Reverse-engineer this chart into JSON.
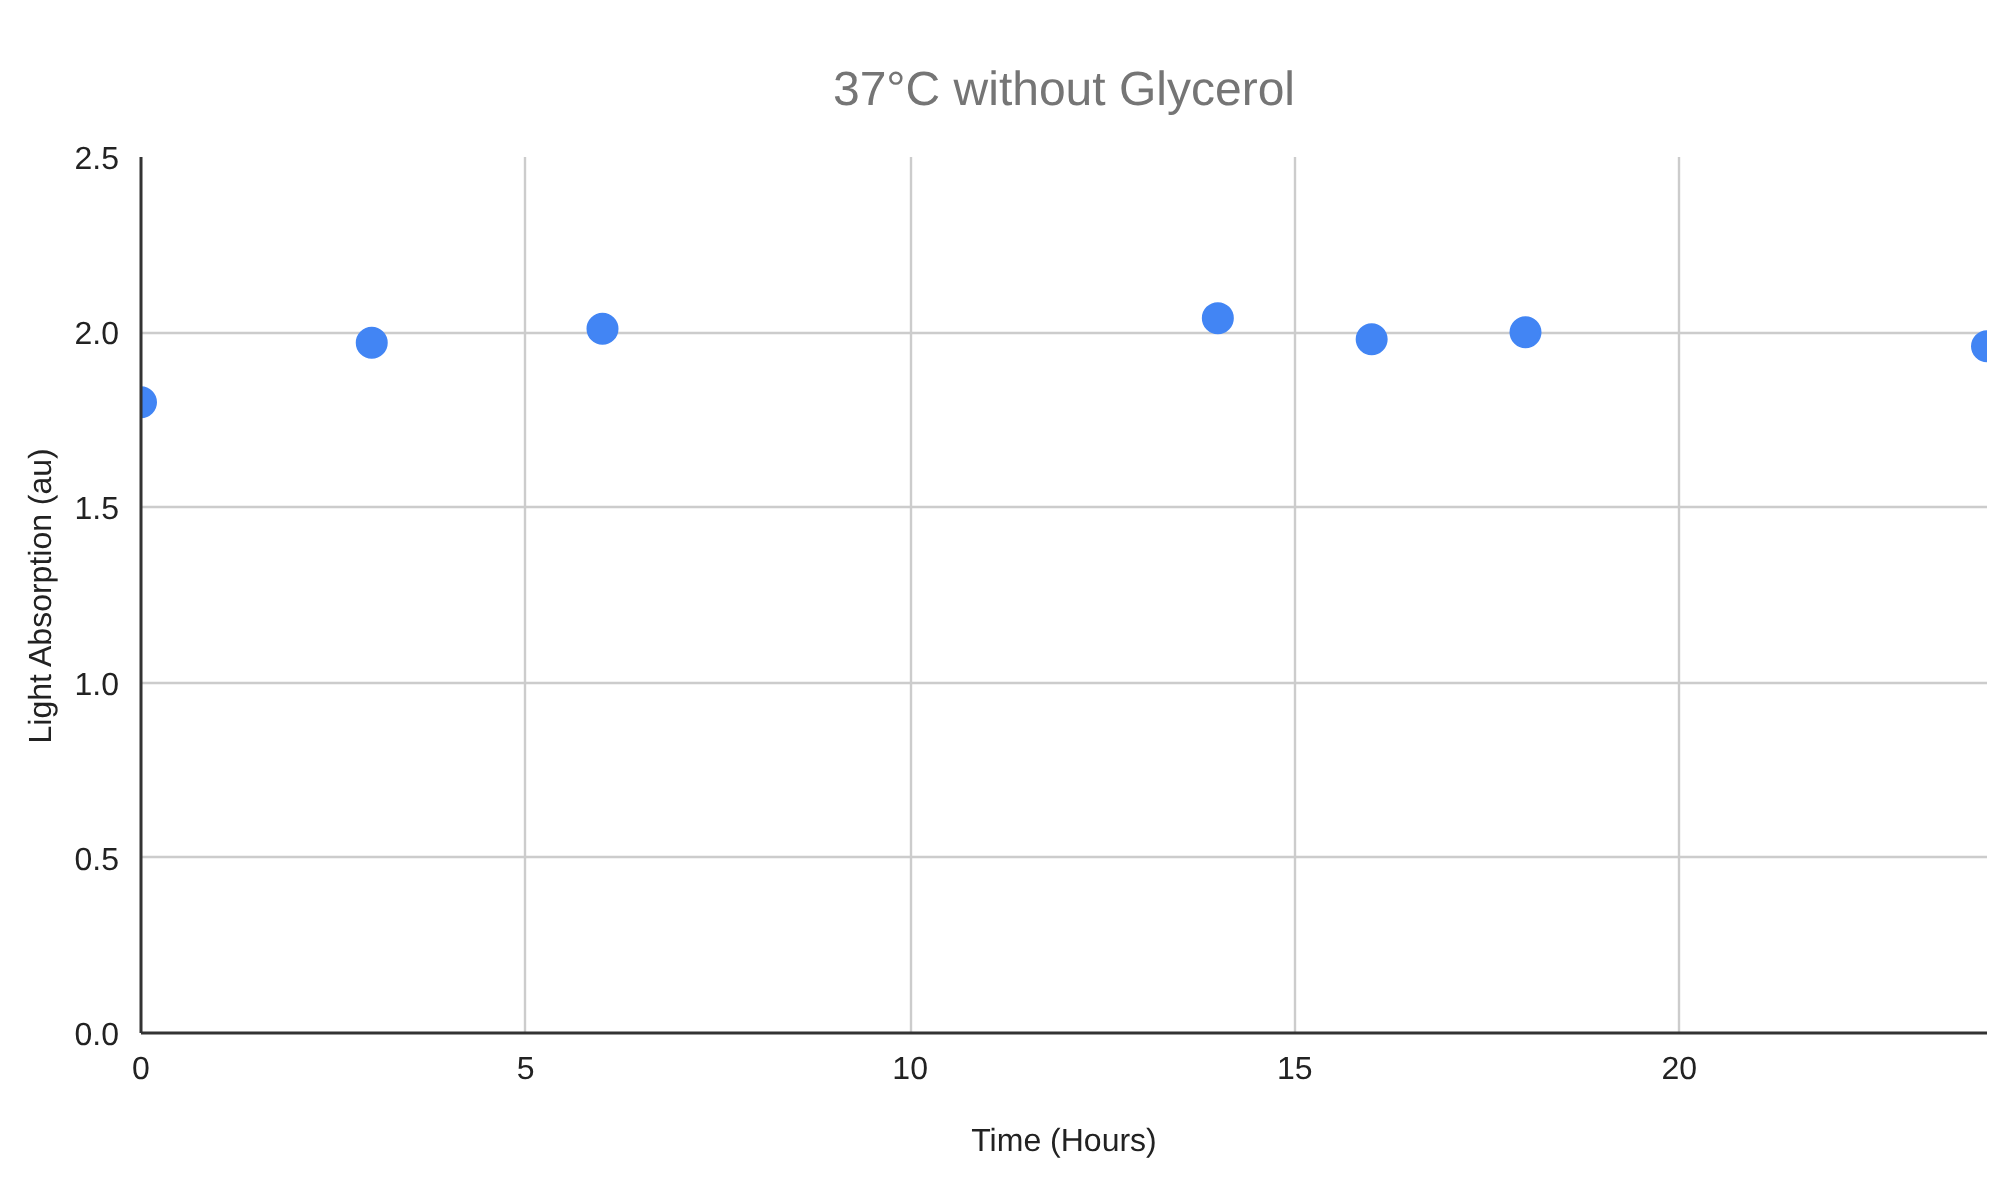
{
  "chart_data": {
    "type": "scatter",
    "title": "37°C without Glycerol",
    "xlabel": "Time (Hours)",
    "ylabel": "Light Absorption (au)",
    "x": [
      0,
      3,
      6,
      14,
      16,
      18,
      24
    ],
    "series": [
      {
        "color": "#4285f4",
        "values": [
          1.8,
          1.97,
          2.01,
          2.04,
          1.98,
          2.0,
          1.96
        ]
      }
    ],
    "xlim": [
      0,
      24
    ],
    "ylim": [
      0,
      2.5
    ],
    "xticks": [
      0,
      5,
      10,
      15,
      20
    ],
    "yticks": [
      {
        "value": 0,
        "label": "0.0"
      },
      {
        "value": 0.5,
        "label": "0.5"
      },
      {
        "value": 1,
        "label": "1.0"
      },
      {
        "value": 1.5,
        "label": "1.5"
      },
      {
        "value": 2,
        "label": "2.0"
      },
      {
        "value": 2.5,
        "label": "2.5"
      }
    ],
    "grid": true,
    "marker": "circle"
  }
}
